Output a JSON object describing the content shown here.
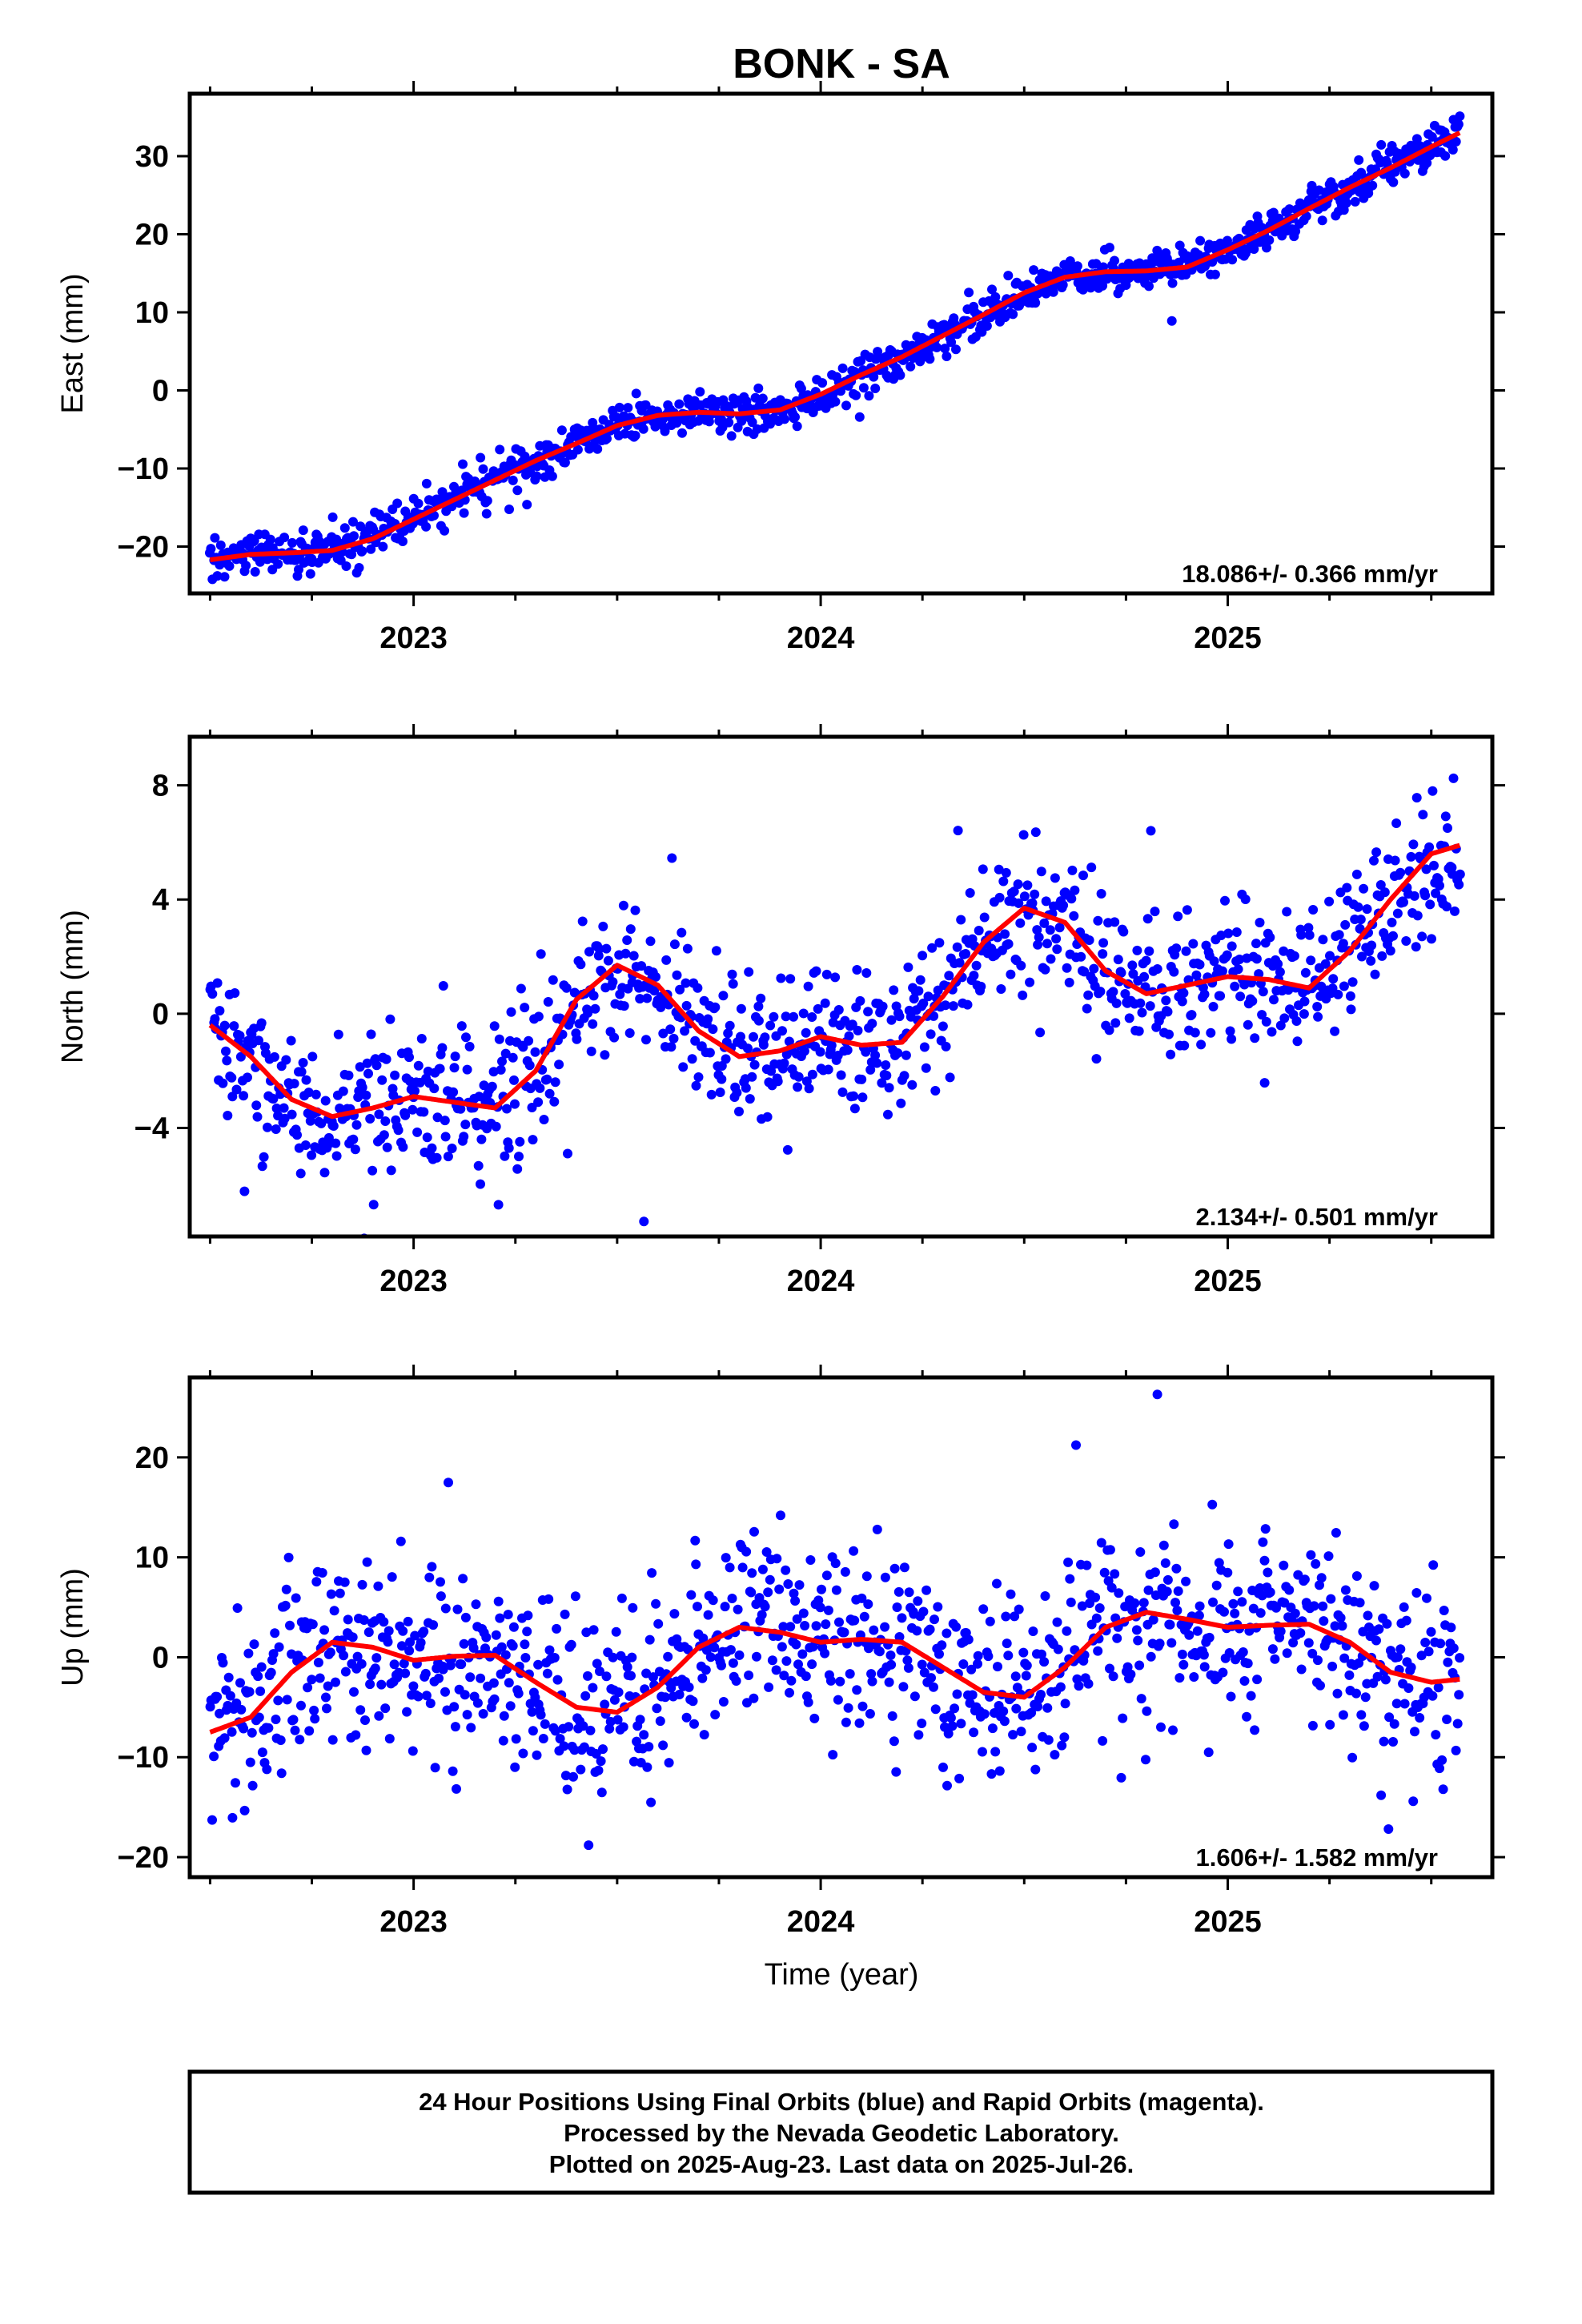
{
  "title": "BONK - SA",
  "x_axis_label": "Time (year)",
  "footer": {
    "lines": [
      "24 Hour Positions Using Final Orbits (blue) and Rapid Orbits (magenta).",
      "Processed by the Nevada Geodetic Laboratory.",
      "Plotted on 2025-Aug-23. Last data on 2025-Jul-26."
    ]
  },
  "colors": {
    "points": "#0000ff",
    "fit": "#ff0000",
    "frame": "#000000"
  },
  "chart_data": [
    {
      "type": "scatter",
      "ylabel": "East (mm)",
      "rate_label": "18.086+/- 0.366 mm/yr",
      "xlim": [
        2022.45,
        2025.65
      ],
      "ylim": [
        -26,
        38
      ],
      "x_ticks": [
        2023,
        2024,
        2025
      ],
      "y_ticks": [
        -20,
        -10,
        0,
        10,
        20,
        30
      ],
      "fit_x": [
        2022.5,
        2022.6,
        2022.7,
        2022.8,
        2022.9,
        2023.0,
        2023.1,
        2023.2,
        2023.3,
        2023.4,
        2023.5,
        2023.6,
        2023.7,
        2023.8,
        2023.9,
        2024.0,
        2024.1,
        2024.2,
        2024.3,
        2024.4,
        2024.5,
        2024.6,
        2024.7,
        2024.8,
        2024.9,
        2025.0,
        2025.1,
        2025.2,
        2025.3,
        2025.4,
        2025.5,
        2025.57
      ],
      "fit_y": [
        -21.7,
        -21.0,
        -20.8,
        -20.5,
        -19.0,
        -16.5,
        -14.0,
        -11.5,
        -9.0,
        -6.8,
        -4.5,
        -3.2,
        -2.8,
        -3.0,
        -2.5,
        -0.5,
        2.0,
        4.3,
        7.0,
        9.7,
        12.5,
        14.5,
        15.2,
        15.3,
        15.8,
        18.0,
        20.5,
        23.3,
        26.0,
        28.5,
        31.2,
        33.0
      ],
      "y_noise": 1.3,
      "point_count": 1050
    },
    {
      "type": "scatter",
      "ylabel": "North (mm)",
      "rate_label": "2.134+/- 0.501 mm/yr",
      "xlim": [
        2022.45,
        2025.65
      ],
      "ylim": [
        -7.8,
        9.7
      ],
      "x_ticks": [
        2023,
        2024,
        2025
      ],
      "y_ticks": [
        -4,
        0,
        4,
        8
      ],
      "fit_x": [
        2022.5,
        2022.6,
        2022.7,
        2022.8,
        2022.9,
        2023.0,
        2023.1,
        2023.2,
        2023.3,
        2023.4,
        2023.5,
        2023.6,
        2023.7,
        2023.8,
        2023.9,
        2024.0,
        2024.1,
        2024.2,
        2024.3,
        2024.4,
        2024.5,
        2024.6,
        2024.7,
        2024.8,
        2024.9,
        2025.0,
        2025.1,
        2025.2,
        2025.3,
        2025.4,
        2025.5,
        2025.57
      ],
      "fit_y": [
        -0.4,
        -1.5,
        -3.0,
        -3.6,
        -3.3,
        -2.9,
        -3.1,
        -3.3,
        -2.0,
        0.5,
        1.7,
        1.0,
        -0.6,
        -1.5,
        -1.3,
        -0.8,
        -1.1,
        -1.0,
        0.6,
        2.5,
        3.7,
        3.2,
        1.5,
        0.7,
        1.0,
        1.3,
        1.2,
        0.9,
        2.2,
        4.0,
        5.6,
        5.9
      ],
      "y_noise": 1.25,
      "point_count": 1050
    },
    {
      "type": "scatter",
      "ylabel": "Up (mm)",
      "rate_label": "1.606+/- 1.582 mm/yr",
      "xlim": [
        2022.45,
        2025.65
      ],
      "ylim": [
        -22,
        28
      ],
      "x_ticks": [
        2023,
        2024,
        2025
      ],
      "y_ticks": [
        -20,
        -10,
        0,
        10,
        20
      ],
      "fit_x": [
        2022.5,
        2022.6,
        2022.7,
        2022.8,
        2022.9,
        2023.0,
        2023.1,
        2023.2,
        2023.3,
        2023.4,
        2023.5,
        2023.6,
        2023.7,
        2023.8,
        2023.9,
        2024.0,
        2024.1,
        2024.2,
        2024.3,
        2024.4,
        2024.5,
        2024.6,
        2024.7,
        2024.8,
        2024.9,
        2025.0,
        2025.1,
        2025.2,
        2025.3,
        2025.4,
        2025.5,
        2025.57
      ],
      "fit_y": [
        -7.5,
        -6.0,
        -1.5,
        1.5,
        1.0,
        -0.3,
        0.1,
        0.2,
        -2.5,
        -5.0,
        -5.5,
        -3.0,
        1.0,
        3.0,
        2.5,
        1.5,
        1.8,
        1.5,
        -1.0,
        -3.5,
        -4.0,
        -1.0,
        3.0,
        4.5,
        3.8,
        3.0,
        3.2,
        3.3,
        1.5,
        -1.5,
        -2.5,
        -2.2
      ],
      "y_noise": 4.5,
      "point_count": 1050
    }
  ]
}
